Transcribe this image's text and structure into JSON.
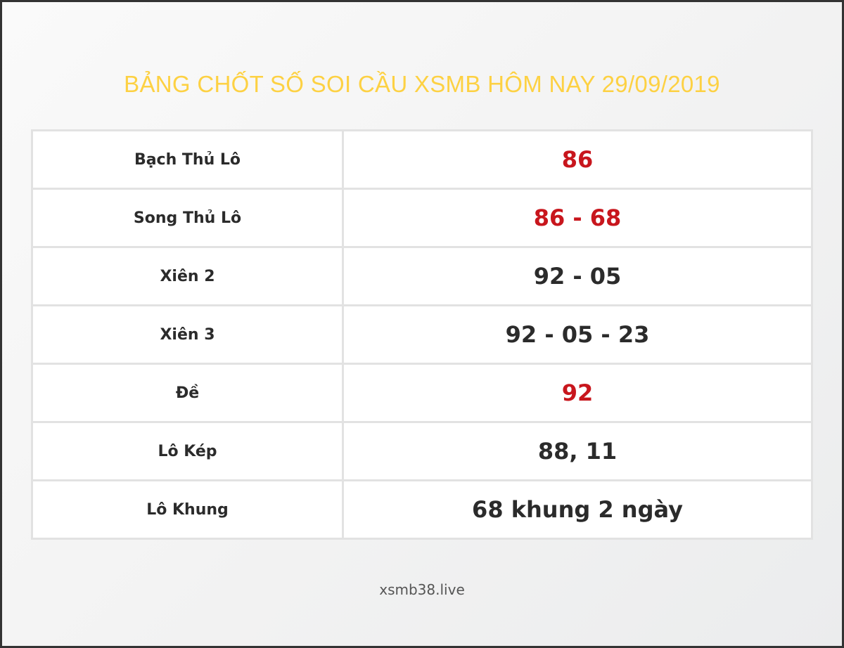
{
  "title": "BẢNG CHỐT SỐ SOI CẦU XSMB HÔM NAY 29/09/2019",
  "colors": {
    "title": "#fdd143",
    "highlight": "#c8161d",
    "text": "#2b2b2b"
  },
  "rows": [
    {
      "label": "Bạch Thủ Lô",
      "value": "86",
      "highlight": true
    },
    {
      "label": "Song Thủ Lô",
      "value": "86 - 68",
      "highlight": true
    },
    {
      "label": "Xiên 2",
      "value": "92 - 05",
      "highlight": false
    },
    {
      "label": "Xiên 3",
      "value": "92 - 05 - 23",
      "highlight": false
    },
    {
      "label": "Đề",
      "value": "92",
      "highlight": true
    },
    {
      "label": "Lô Kép",
      "value": "88, 11",
      "highlight": false
    },
    {
      "label": "Lô Khung",
      "value": "68 khung 2 ngày",
      "highlight": false
    }
  ],
  "footer": "xsmb38.live"
}
